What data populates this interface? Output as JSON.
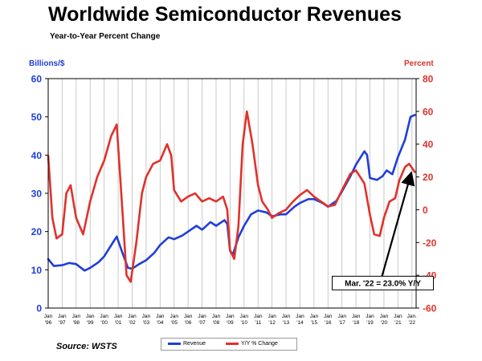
{
  "header": {
    "title": "Worldwide Semiconductor Revenues",
    "subtitle": "Year-to-Year Percent Change"
  },
  "footer": {
    "source": "Source: WSTS"
  },
  "legend": {
    "revenue": "Revenue",
    "yoy": "Y/Y % Change"
  },
  "colors": {
    "revenue": "#1f3fd6",
    "yoy": "#e0322b",
    "arrow": "#000000",
    "grid": "#bdbdbd"
  },
  "chart_data": {
    "type": "line",
    "x_axis": {
      "month_labels": [
        "Jan",
        "Jan",
        "Jan",
        "Jan",
        "Jan",
        "Jan",
        "Jan",
        "Jan",
        "Jan",
        "Jan",
        "Jan",
        "Jan",
        "Jan",
        "Jan",
        "Jan",
        "Jan",
        "Jan",
        "Jan",
        "Jan",
        "Jan",
        "Jan",
        "Jan",
        "Jan",
        "Jan",
        "Jan",
        "Jan",
        "Jan."
      ],
      "year_labels": [
        "'96",
        "'97",
        "'98",
        "'99",
        "'00",
        "'01",
        "'02",
        "'03",
        "'04",
        "'05",
        "'06",
        "'07",
        "'08",
        "'09",
        "'10",
        "'11",
        "'12",
        "'13",
        "'14",
        "'15",
        "'16",
        "'17",
        "'18",
        "'19",
        "'20",
        "'21",
        "'22"
      ],
      "start_year": 1996,
      "end_year": 2022,
      "end_month": 3
    },
    "y_left": {
      "label": "Billions/$",
      "min": 0,
      "max": 60,
      "ticks": [
        0,
        10,
        20,
        30,
        40,
        50,
        60
      ]
    },
    "y_right": {
      "label": "Percent",
      "min": -60,
      "max": 80,
      "ticks": [
        -60,
        -40,
        -20,
        0,
        20,
        40,
        60,
        80
      ]
    },
    "grid": "vertical",
    "legend_position": "bottom",
    "series": [
      {
        "name": "Revenue",
        "axis": "left",
        "points": [
          [
            1996.0,
            12.8
          ],
          [
            1996.4,
            11.0
          ],
          [
            1997.0,
            11.2
          ],
          [
            1997.5,
            11.8
          ],
          [
            1998.0,
            11.5
          ],
          [
            1998.6,
            9.8
          ],
          [
            1999.0,
            10.5
          ],
          [
            1999.6,
            12.0
          ],
          [
            2000.0,
            13.5
          ],
          [
            2000.6,
            17.0
          ],
          [
            2000.9,
            18.7
          ],
          [
            2001.3,
            14.5
          ],
          [
            2001.7,
            10.5
          ],
          [
            2002.0,
            10.3
          ],
          [
            2002.5,
            11.5
          ],
          [
            2003.0,
            12.5
          ],
          [
            2003.6,
            14.5
          ],
          [
            2004.0,
            16.5
          ],
          [
            2004.6,
            18.5
          ],
          [
            2005.0,
            18.0
          ],
          [
            2005.6,
            19.0
          ],
          [
            2006.0,
            20.0
          ],
          [
            2006.6,
            21.5
          ],
          [
            2007.0,
            20.5
          ],
          [
            2007.6,
            22.5
          ],
          [
            2008.0,
            21.5
          ],
          [
            2008.6,
            23.0
          ],
          [
            2008.8,
            22.0
          ],
          [
            2009.0,
            15.0
          ],
          [
            2009.2,
            14.0
          ],
          [
            2009.6,
            18.5
          ],
          [
            2010.0,
            21.5
          ],
          [
            2010.5,
            24.5
          ],
          [
            2011.0,
            25.5
          ],
          [
            2011.6,
            25.0
          ],
          [
            2012.0,
            24.0
          ],
          [
            2012.6,
            24.5
          ],
          [
            2013.0,
            24.5
          ],
          [
            2013.6,
            26.5
          ],
          [
            2014.0,
            27.5
          ],
          [
            2014.6,
            28.5
          ],
          [
            2015.0,
            28.5
          ],
          [
            2015.6,
            27.5
          ],
          [
            2016.0,
            26.5
          ],
          [
            2016.6,
            28.0
          ],
          [
            2017.0,
            30.5
          ],
          [
            2017.6,
            34.5
          ],
          [
            2018.0,
            37.5
          ],
          [
            2018.6,
            41.0
          ],
          [
            2018.8,
            40.0
          ],
          [
            2019.0,
            34.0
          ],
          [
            2019.5,
            33.5
          ],
          [
            2019.9,
            34.5
          ],
          [
            2020.2,
            36.0
          ],
          [
            2020.6,
            35.0
          ],
          [
            2021.0,
            39.5
          ],
          [
            2021.5,
            44.0
          ],
          [
            2021.9,
            50.0
          ],
          [
            2022.2,
            50.5
          ]
        ]
      },
      {
        "name": "Y/Y % Change",
        "axis": "right",
        "points": [
          [
            1996.0,
            33.0
          ],
          [
            1996.3,
            -5.0
          ],
          [
            1996.6,
            -17.5
          ],
          [
            1997.0,
            -15.0
          ],
          [
            1997.3,
            10.0
          ],
          [
            1997.6,
            15.0
          ],
          [
            1998.0,
            -5.0
          ],
          [
            1998.5,
            -15.0
          ],
          [
            1999.0,
            5.0
          ],
          [
            1999.5,
            20.0
          ],
          [
            2000.0,
            30.0
          ],
          [
            2000.5,
            45.0
          ],
          [
            2000.9,
            52.0
          ],
          [
            2001.3,
            0.0
          ],
          [
            2001.6,
            -40.0
          ],
          [
            2001.9,
            -44.0
          ],
          [
            2002.3,
            -20.0
          ],
          [
            2002.7,
            10.0
          ],
          [
            2003.0,
            20.0
          ],
          [
            2003.5,
            28.0
          ],
          [
            2004.0,
            30.0
          ],
          [
            2004.5,
            40.0
          ],
          [
            2004.8,
            33.0
          ],
          [
            2005.0,
            12.0
          ],
          [
            2005.5,
            5.0
          ],
          [
            2006.0,
            8.0
          ],
          [
            2006.5,
            10.0
          ],
          [
            2007.0,
            5.0
          ],
          [
            2007.5,
            7.0
          ],
          [
            2008.0,
            5.0
          ],
          [
            2008.5,
            8.0
          ],
          [
            2008.8,
            0.0
          ],
          [
            2009.0,
            -25.0
          ],
          [
            2009.3,
            -30.0
          ],
          [
            2009.6,
            -10.0
          ],
          [
            2009.9,
            40.0
          ],
          [
            2010.2,
            60.0
          ],
          [
            2010.6,
            40.0
          ],
          [
            2011.0,
            15.0
          ],
          [
            2011.3,
            5.0
          ],
          [
            2011.7,
            0.0
          ],
          [
            2012.0,
            -5.0
          ],
          [
            2012.5,
            -2.0
          ],
          [
            2013.0,
            0.0
          ],
          [
            2013.5,
            5.0
          ],
          [
            2014.0,
            9.0
          ],
          [
            2014.5,
            12.0
          ],
          [
            2015.0,
            8.0
          ],
          [
            2015.5,
            5.0
          ],
          [
            2016.0,
            2.0
          ],
          [
            2016.5,
            3.0
          ],
          [
            2017.0,
            12.0
          ],
          [
            2017.6,
            22.0
          ],
          [
            2018.0,
            24.0
          ],
          [
            2018.6,
            16.0
          ],
          [
            2019.0,
            -3.0
          ],
          [
            2019.3,
            -15.0
          ],
          [
            2019.7,
            -16.0
          ],
          [
            2020.0,
            -5.0
          ],
          [
            2020.4,
            5.0
          ],
          [
            2020.8,
            7.0
          ],
          [
            2021.1,
            18.0
          ],
          [
            2021.5,
            26.0
          ],
          [
            2021.8,
            28.0
          ],
          [
            2022.2,
            23.0
          ]
        ]
      }
    ],
    "annotation": {
      "text": "Mar. '22 = 23.0% Y/Y",
      "target_x": 2022.15,
      "target_y": 23.0,
      "target_axis": "right",
      "label_x": 2016.3,
      "label_y": -44.5,
      "label_axis": "right"
    }
  }
}
